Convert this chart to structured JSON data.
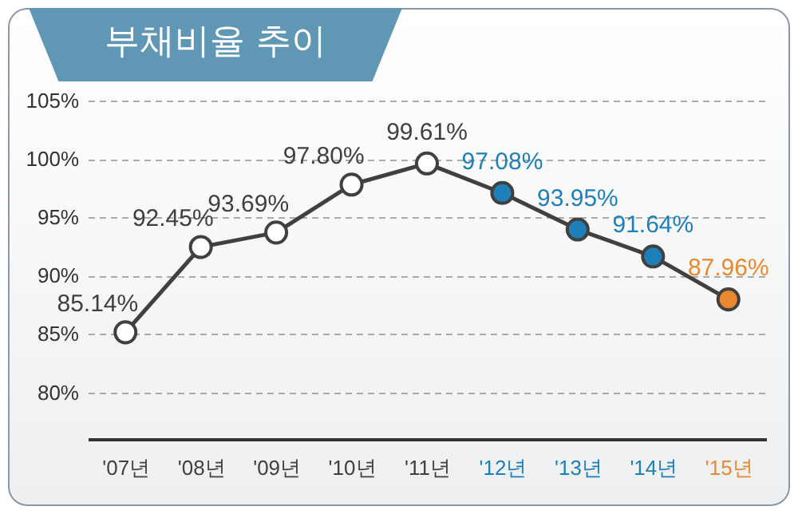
{
  "chart_data": {
    "type": "line",
    "title": "부채비율 추이",
    "categories": [
      "'07년",
      "'08년",
      "'09년",
      "'10년",
      "'11년",
      "'12년",
      "'13년",
      "'14년",
      "'15년"
    ],
    "series": [
      {
        "color": "#404040",
        "values": [
          85.14,
          92.45,
          93.69,
          97.8,
          99.61,
          97.08,
          93.95,
          91.64,
          87.96
        ],
        "colors": [
          "#ffffff",
          "#ffffff",
          "#ffffff",
          "#ffffff",
          "#ffffff",
          "#1f7fb8",
          "#1f7fb8",
          "#1f7fb8",
          "#e8892f"
        ],
        "value_labels": [
          "85.14%",
          "92.45%",
          "93.69%",
          "97.80%",
          "99.61%",
          "97.08%",
          "93.95%",
          "91.64%",
          "87.96%"
        ]
      }
    ],
    "ylim": [
      76,
      105
    ],
    "yticks": [
      {
        "value": 80,
        "label": "80%"
      },
      {
        "value": 85,
        "label": "85%"
      },
      {
        "value": 90,
        "label": "90%"
      },
      {
        "value": 95,
        "label": "95%"
      },
      {
        "value": 100,
        "label": "100%"
      },
      {
        "value": 105,
        "label": "105%"
      }
    ],
    "grid": "y",
    "marker": "circle",
    "line_style": "solid"
  }
}
